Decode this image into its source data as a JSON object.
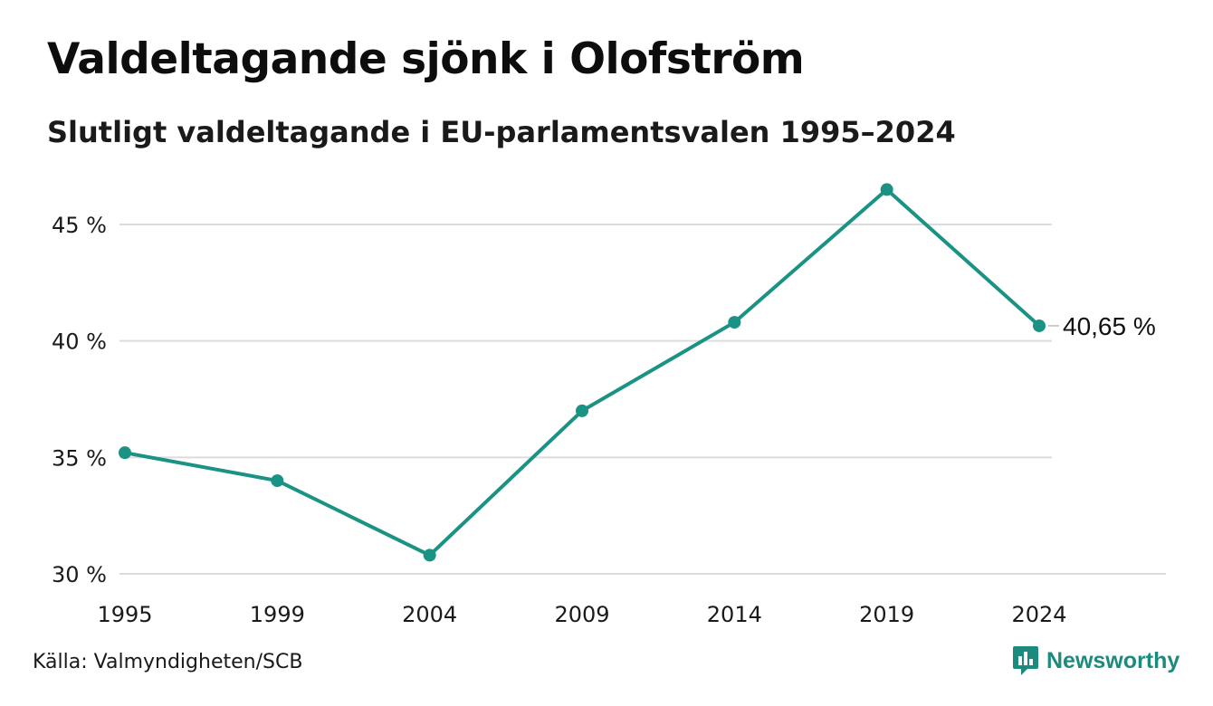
{
  "header": {
    "title": "Valdeltagande sjönk i Olofström",
    "subtitle": "Slutligt valdeltagande i EU-parlamentsvalen 1995–2024"
  },
  "footer": {
    "source": "Källa: Valmyndigheten/SCB",
    "brand": "Newsworthy",
    "brand_icon": "bar-chart-speech-bubble-icon"
  },
  "colors": {
    "line": "#1a9284",
    "grid": "#dcdcdc",
    "brand": "#1d8a7e"
  },
  "chart_data": {
    "type": "line",
    "title": "Valdeltagande sjönk i Olofström",
    "subtitle": "Slutligt valdeltagande i EU-parlamentsvalen 1995–2024",
    "x": [
      "1995",
      "1999",
      "2004",
      "2009",
      "2014",
      "2019",
      "2024"
    ],
    "series": [
      {
        "values": [
          35.2,
          34.0,
          30.8,
          37.0,
          40.8,
          46.5,
          40.65
        ]
      }
    ],
    "yticks": [
      30,
      35,
      40,
      45
    ],
    "ytick_labels": [
      "30 %",
      "35 %",
      "40 %",
      "45 %"
    ],
    "ylim": [
      30,
      47
    ],
    "end_label": "40,65 %",
    "grid": "horizontal",
    "legend": "none"
  }
}
